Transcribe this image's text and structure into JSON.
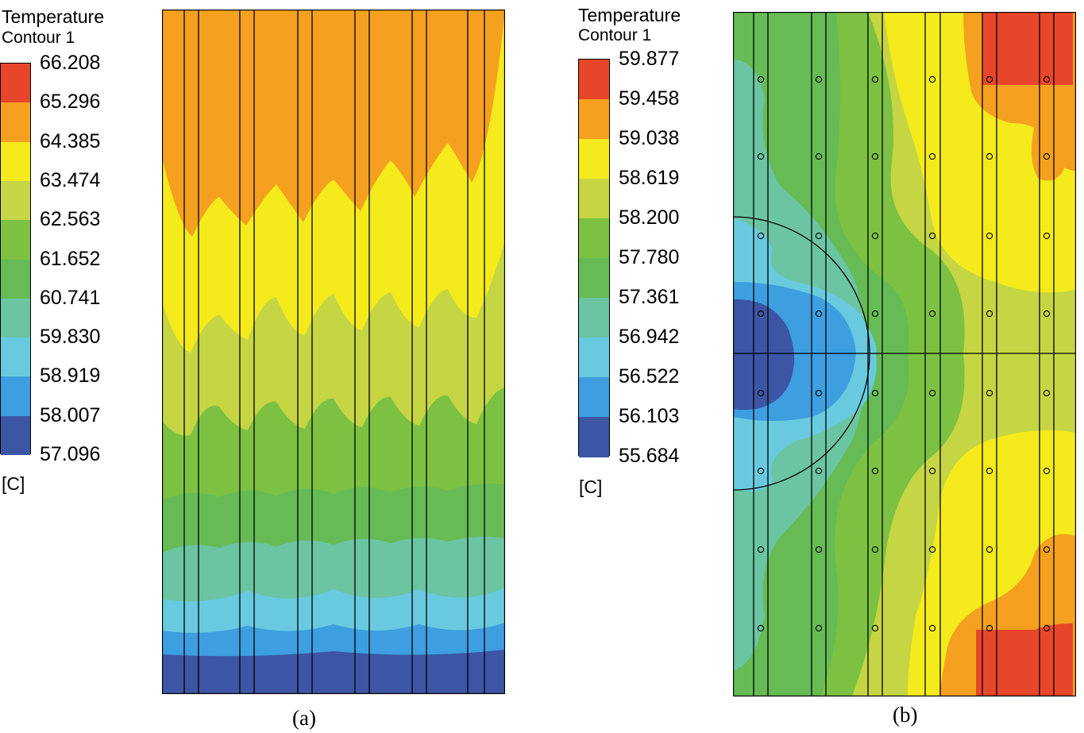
{
  "chart_data": [
    {
      "type": "heatmap",
      "panel_label": "(a)",
      "title": "Temperature",
      "subtitle": "Contour 1",
      "unit": "[C]",
      "legend_levels": [
        "66.208",
        "65.296",
        "64.385",
        "63.474",
        "62.563",
        "61.652",
        "60.741",
        "59.830",
        "58.919",
        "58.007",
        "57.096"
      ],
      "colors": [
        "#e8462a",
        "#f5a11f",
        "#f4ea1c",
        "#c5d544",
        "#7cc142",
        "#66bb55",
        "#6bc4a2",
        "#69cadf",
        "#3d9ee0",
        "#3c55a5"
      ],
      "description_min": 57.096,
      "description_max": 66.208
    },
    {
      "type": "heatmap",
      "panel_label": "(b)",
      "title": "Temperature",
      "subtitle": "Contour 1",
      "unit": "[C]",
      "legend_levels": [
        "59.877",
        "59.458",
        "59.038",
        "58.619",
        "58.200",
        "57.780",
        "57.361",
        "56.942",
        "56.522",
        "56.103",
        "55.684"
      ],
      "colors": [
        "#e8462a",
        "#f5a11f",
        "#f4ea1c",
        "#c5d544",
        "#7cc142",
        "#66bb55",
        "#6bc4a2",
        "#69cadf",
        "#3d9ee0",
        "#3c55a5"
      ],
      "description_min": 55.684,
      "description_max": 59.877
    }
  ]
}
